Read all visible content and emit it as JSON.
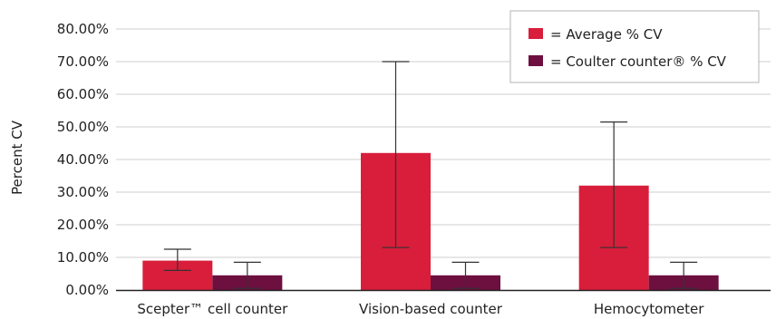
{
  "chart_data": {
    "type": "bar",
    "title": "",
    "xlabel": "",
    "ylabel": "Percent CV",
    "ylim": [
      0,
      80
    ],
    "yticks": [
      "0.00%",
      "10.00%",
      "20.00%",
      "30.00%",
      "40.00%",
      "50.00%",
      "60.00%",
      "70.00%",
      "80.00%"
    ],
    "categories": [
      "Scepter™ cell counter",
      "Vision-based counter",
      "Hemocytometer"
    ],
    "grid": true,
    "legend_position": "top-right",
    "series": [
      {
        "name": "= Average % CV",
        "color": "#d81e3b",
        "values": [
          9.0,
          42.0,
          32.0
        ],
        "error_low": [
          6.0,
          13.0,
          13.0
        ],
        "error_high": [
          12.5,
          70.0,
          51.5
        ]
      },
      {
        "name": "= Coulter counter® % CV",
        "color": "#6d1040",
        "values": [
          4.5,
          4.5,
          4.5
        ],
        "error_low": [
          0.5,
          0.5,
          0.5
        ],
        "error_high": [
          8.5,
          8.5,
          8.5
        ]
      }
    ]
  }
}
